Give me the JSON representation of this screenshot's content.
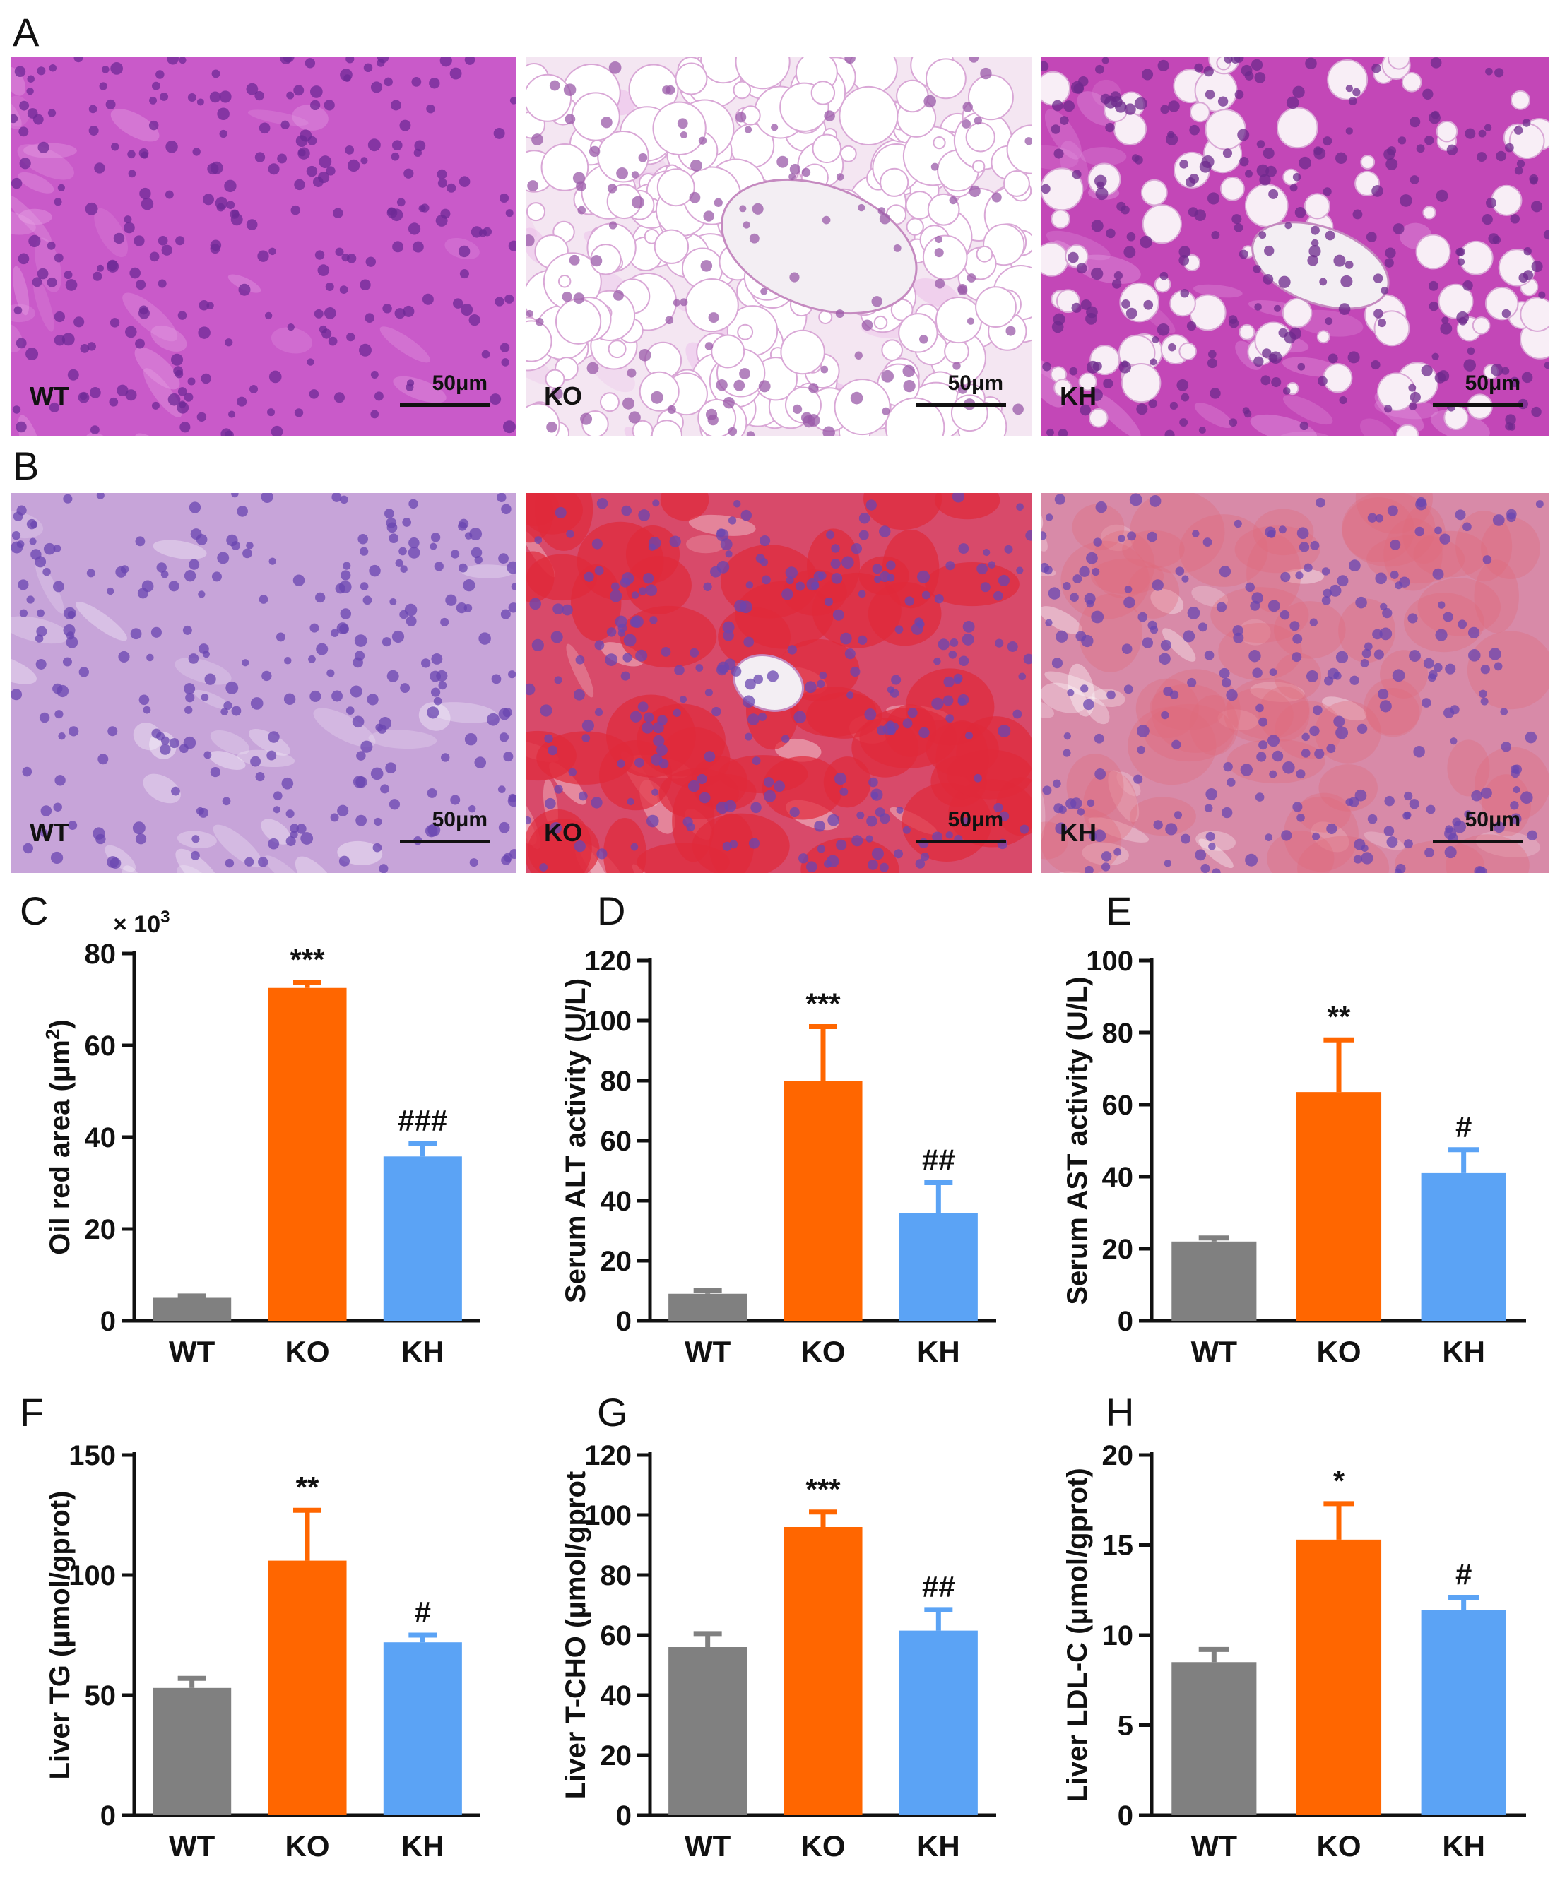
{
  "panel_letters": [
    "A",
    "B",
    "C",
    "D",
    "E",
    "F",
    "G",
    "H"
  ],
  "micrographs": {
    "scale_bar": "50μm",
    "row_a": [
      {
        "label": "WT",
        "stain": "he-normal"
      },
      {
        "label": "KO",
        "stain": "he-vacuolated"
      },
      {
        "label": "KH",
        "stain": "he-mixed"
      }
    ],
    "row_b": [
      {
        "label": "WT",
        "stain": "oilred-none"
      },
      {
        "label": "KO",
        "stain": "oilred-heavy"
      },
      {
        "label": "KH",
        "stain": "oilred-moderate"
      }
    ]
  },
  "colors": {
    "WT": "#808080",
    "KO": "#FF6600",
    "KH": "#5BA3F5"
  },
  "chart_data": [
    {
      "panel": "C",
      "type": "bar",
      "categories": [
        "WT",
        "KO",
        "KH"
      ],
      "values": [
        5,
        72.5,
        35.8
      ],
      "errors": [
        0.4,
        1.2,
        2.8
      ],
      "annotations": [
        "",
        "***",
        "###"
      ],
      "ylabel": "Oil red area (μm",
      "ylabel_sup": "2",
      "ylabel_tail": ")",
      "multiplier": "× 10",
      "multiplier_sup": "3",
      "ylim": [
        0,
        80
      ],
      "yticks": [
        "0",
        "20",
        "40",
        "60",
        "80"
      ],
      "yticks_values": [
        0,
        20,
        40,
        60,
        80
      ]
    },
    {
      "panel": "D",
      "type": "bar",
      "categories": [
        "WT",
        "KO",
        "KH"
      ],
      "values": [
        9,
        80,
        36
      ],
      "errors": [
        1,
        18,
        10
      ],
      "annotations": [
        "",
        "***",
        "##"
      ],
      "ylabel": "Serum ALT activity (U/L)",
      "ylim": [
        0,
        120
      ],
      "yticks": [
        "0",
        "20",
        "40",
        "60",
        "80",
        "100",
        "120"
      ],
      "yticks_values": [
        0,
        20,
        40,
        60,
        80,
        100,
        120
      ]
    },
    {
      "panel": "E",
      "type": "bar",
      "categories": [
        "WT",
        "KO",
        "KH"
      ],
      "values": [
        22,
        63.5,
        41
      ],
      "errors": [
        1,
        14.5,
        6.5
      ],
      "annotations": [
        "",
        "**",
        "#"
      ],
      "ylabel": "Serum AST activity (U/L)",
      "ylim": [
        0,
        100
      ],
      "yticks": [
        "0",
        "20",
        "40",
        "60",
        "80",
        "100"
      ],
      "yticks_values": [
        0,
        20,
        40,
        60,
        80,
        100
      ]
    },
    {
      "panel": "F",
      "type": "bar",
      "categories": [
        "WT",
        "KO",
        "KH"
      ],
      "values": [
        53,
        106,
        72
      ],
      "errors": [
        4,
        21,
        3
      ],
      "annotations": [
        "",
        "**",
        "#"
      ],
      "ylabel": "Liver TG (μmol/gprot)",
      "ylim": [
        0,
        150
      ],
      "yticks": [
        "0",
        "50",
        "100",
        "150"
      ],
      "yticks_values": [
        0,
        50,
        100,
        150
      ]
    },
    {
      "panel": "G",
      "type": "bar",
      "categories": [
        "WT",
        "KO",
        "KH"
      ],
      "values": [
        56,
        96,
        61.5
      ],
      "errors": [
        4.5,
        5,
        7
      ],
      "annotations": [
        "",
        "***",
        "##"
      ],
      "ylabel": "Liver T-CHO (μmol/gprot",
      "ylim": [
        0,
        120
      ],
      "yticks": [
        "0",
        "20",
        "40",
        "60",
        "80",
        "100",
        "120"
      ],
      "yticks_values": [
        0,
        20,
        40,
        60,
        80,
        100,
        120
      ]
    },
    {
      "panel": "H",
      "type": "bar",
      "categories": [
        "WT",
        "KO",
        "KH"
      ],
      "values": [
        8.5,
        15.3,
        11.4
      ],
      "errors": [
        0.7,
        2.0,
        0.7
      ],
      "annotations": [
        "",
        "*",
        "#"
      ],
      "ylabel": "Liver LDL-C (μmol/gprot)",
      "ylim": [
        0,
        20
      ],
      "yticks": [
        "0",
        "5",
        "10",
        "15",
        "20"
      ],
      "yticks_values": [
        0,
        5,
        10,
        15,
        20
      ]
    }
  ]
}
